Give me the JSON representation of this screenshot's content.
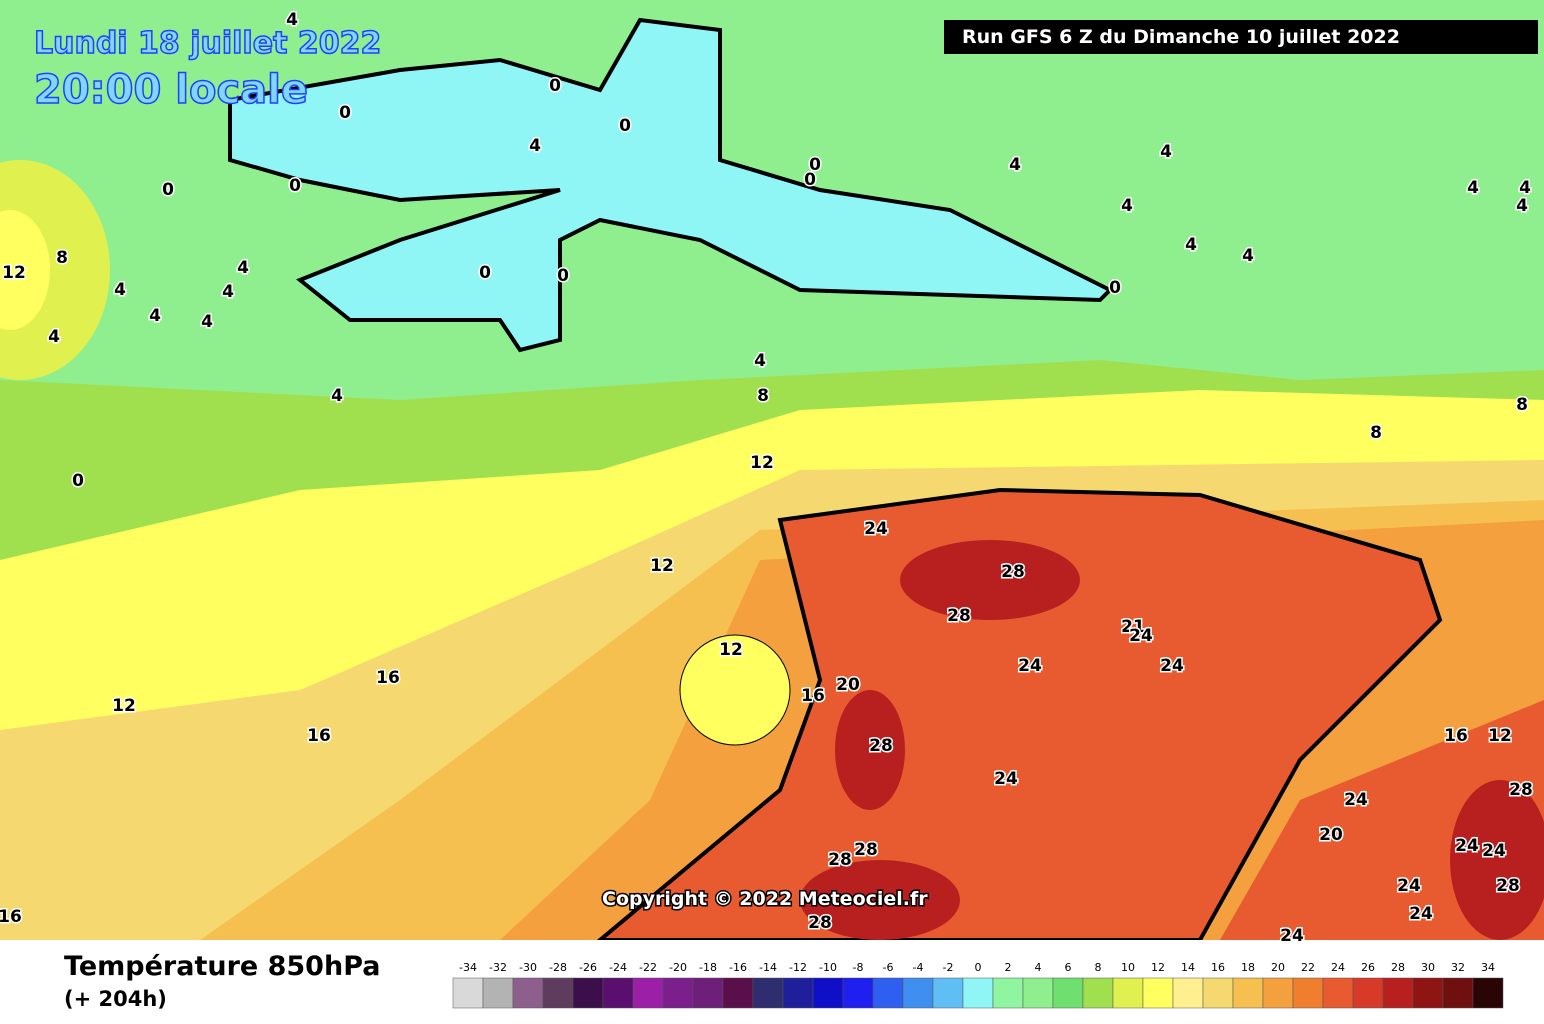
{
  "map": {
    "date": "Lundi 18 juillet 2022",
    "time": "20:00 locale",
    "run": "Run GFS 6 Z du Dimanche 10 juillet 2022",
    "copyright": "Copyright © 2022 Meteociel.fr",
    "contour_labels": [
      4,
      0,
      0,
      0,
      0,
      4,
      0,
      0,
      0,
      4,
      4,
      4,
      4,
      4,
      0,
      4,
      4,
      4,
      8,
      12,
      4,
      4,
      4,
      4,
      4,
      4,
      0,
      0,
      4,
      4,
      8,
      8,
      8,
      0,
      12,
      12,
      24,
      28,
      28,
      21,
      24,
      24,
      24,
      12,
      16,
      20,
      16,
      12,
      16,
      28,
      16,
      12,
      24,
      24,
      28,
      20,
      28,
      28,
      24,
      24,
      24,
      28,
      24,
      28,
      24,
      16
    ]
  },
  "legend": {
    "title": "Température 850hPa",
    "lead_time": "(+ 204h)",
    "ticks": [
      -34,
      -32,
      -30,
      -28,
      -26,
      -24,
      -22,
      -20,
      -18,
      -16,
      -14,
      -12,
      -10,
      -8,
      -6,
      -4,
      -2,
      0,
      2,
      4,
      6,
      8,
      10,
      12,
      14,
      16,
      18,
      20,
      22,
      24,
      26,
      28,
      30,
      32,
      34
    ],
    "colors": [
      "#d9d9d9",
      "#b3b3b3",
      "#8c5f8c",
      "#5e3c5e",
      "#3c0f4a",
      "#5a0f6e",
      "#9c1fa8",
      "#7a1f8c",
      "#6e1f7a",
      "#5a0f4a",
      "#2e2e6e",
      "#1f1f9c",
      "#0f0fc8",
      "#1f1ff0",
      "#2f5ff0",
      "#3f8ff0",
      "#5fbff5",
      "#8ff5f5",
      "#8ff5a0",
      "#8fef8f",
      "#6fe06f",
      "#a0e04f",
      "#dff04f",
      "#ffff5f",
      "#fff08f",
      "#f5d86f",
      "#f5c04f",
      "#f5a03f",
      "#ef7f2f",
      "#e85a2f",
      "#d83a2a",
      "#b8201f",
      "#8f1515",
      "#6f0f0f",
      "#2a0505"
    ]
  }
}
